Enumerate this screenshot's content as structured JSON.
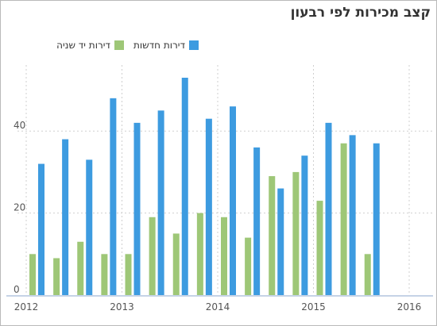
{
  "title": "קצב מכירות לפי רבעון",
  "colors": {
    "new": "#3d9be0",
    "used": "#9ec777",
    "grid": "#cfcfcf",
    "axis": "#c5d3e6"
  },
  "chart_data": {
    "type": "bar",
    "title": "קצב מכירות לפי רבעון",
    "xlabel": "",
    "ylabel": "",
    "legend_placement": "top",
    "grid": true,
    "x_ticks": [
      "2012",
      "2013",
      "2014",
      "2015",
      "2016"
    ],
    "y_ticks": [
      "0",
      "20",
      "40"
    ],
    "ylim": [
      0,
      55
    ],
    "categories": [
      "2012 Q1",
      "2012 Q2",
      "2012 Q3",
      "2012 Q4",
      "2013 Q1",
      "2013 Q2",
      "2013 Q3",
      "2013 Q4",
      "2014 Q1",
      "2014 Q2",
      "2014 Q3",
      "2014 Q4",
      "2015 Q1",
      "2015 Q2",
      "2015 Q3"
    ],
    "series": [
      {
        "name": "דירות חדשות",
        "values": [
          32,
          38,
          33,
          48,
          42,
          45,
          53,
          43,
          46,
          36,
          26,
          34,
          42,
          39,
          37
        ]
      },
      {
        "name": "דירות יד שניה",
        "values": [
          10,
          9,
          13,
          10,
          10,
          19,
          15,
          20,
          19,
          14,
          29,
          30,
          23,
          37,
          10
        ]
      }
    ]
  }
}
